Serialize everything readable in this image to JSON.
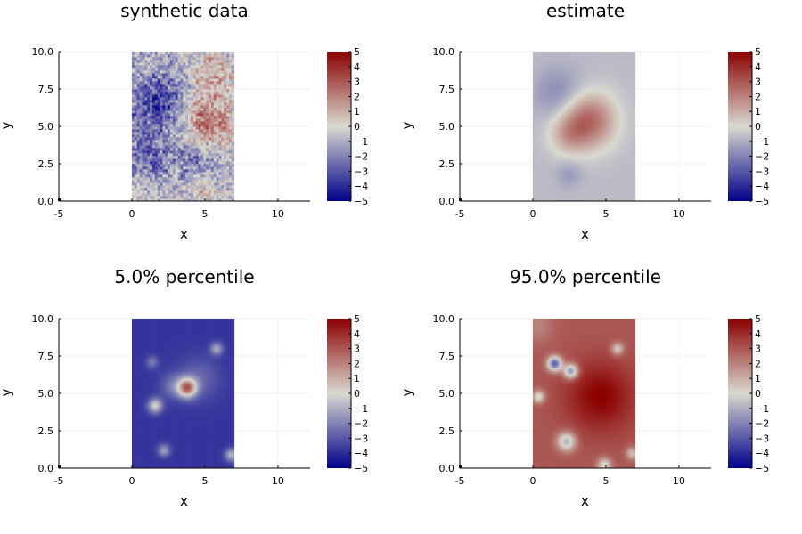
{
  "colors": {
    "colormap": [
      "#00008b",
      "#d9d9d0",
      "#8b0000"
    ],
    "axis": "#000000",
    "grid": "#e6e6e6"
  },
  "chart_data": [
    {
      "type": "heatmap",
      "title": "synthetic data",
      "xlabel": "x",
      "ylabel": "y",
      "xlim": [
        -5,
        12.2
      ],
      "ylim": [
        0,
        10
      ],
      "xticks": [
        "-5",
        "0",
        "5",
        "10"
      ],
      "yticks": [
        "0.0",
        "2.5",
        "5.0",
        "7.5",
        "10.0"
      ],
      "data_extent": {
        "x": [
          0,
          7
        ],
        "y": [
          0,
          10
        ]
      },
      "field": {
        "kind": "noisy",
        "base": -0.6,
        "bumps": [
          {
            "x": 1.8,
            "y": 6.5,
            "amp": -3.0,
            "sigma": 1.4
          },
          {
            "x": 1.0,
            "y": 2.8,
            "amp": -2.0,
            "sigma": 1.2
          },
          {
            "x": 4.5,
            "y": 2.5,
            "amp": -1.6,
            "sigma": 1.0
          },
          {
            "x": 5.2,
            "y": 5.4,
            "amp": 3.2,
            "sigma": 1.2
          },
          {
            "x": 5.5,
            "y": 8.5,
            "amp": 1.8,
            "sigma": 1.0
          },
          {
            "x": 4.8,
            "y": 1.0,
            "amp": 1.2,
            "sigma": 0.8
          },
          {
            "x": 0.5,
            "y": 0.6,
            "amp": 0.8,
            "sigma": 0.8
          }
        ]
      },
      "colorbar": {
        "ticks": [
          "5",
          "4",
          "3",
          "2",
          "1",
          "0",
          "−1",
          "−2",
          "−3",
          "−4",
          "−5"
        ],
        "range": [
          -5,
          5
        ]
      }
    },
    {
      "type": "heatmap",
      "title": "estimate",
      "xlabel": "x",
      "ylabel": "y",
      "xlim": [
        -5,
        12.2
      ],
      "ylim": [
        0,
        10
      ],
      "xticks": [
        "-5",
        "0",
        "5",
        "10"
      ],
      "yticks": [
        "0.0",
        "2.5",
        "5.0",
        "7.5",
        "10.0"
      ],
      "data_extent": {
        "x": [
          0,
          7
        ],
        "y": [
          0,
          10
        ]
      },
      "field": {
        "kind": "smooth",
        "base": -0.7,
        "bumps": [
          {
            "x": 3.8,
            "y": 5.4,
            "amp": 3.4,
            "sigma": 1.3
          },
          {
            "x": 2.4,
            "y": 4.4,
            "amp": 1.4,
            "sigma": 0.9
          },
          {
            "x": 1.8,
            "y": 7.2,
            "amp": -1.2,
            "sigma": 1.2
          },
          {
            "x": 2.5,
            "y": 1.8,
            "amp": -0.8,
            "sigma": 0.6
          }
        ]
      },
      "colorbar": {
        "ticks": [
          "5",
          "4",
          "3",
          "2",
          "1",
          "0",
          "−1",
          "−2",
          "−3",
          "−4",
          "−5"
        ],
        "range": [
          -5,
          5
        ]
      }
    },
    {
      "type": "heatmap",
      "title": "5.0% percentile",
      "xlabel": "x",
      "ylabel": "y",
      "xlim": [
        -5,
        12.2
      ],
      "ylim": [
        0,
        10
      ],
      "xticks": [
        "-5",
        "0",
        "5",
        "10"
      ],
      "yticks": [
        "0.0",
        "2.5",
        "5.0",
        "7.5",
        "10.0"
      ],
      "data_extent": {
        "x": [
          0,
          7
        ],
        "y": [
          0,
          10
        ]
      },
      "field": {
        "kind": "smooth",
        "base": -3.8,
        "bumps": [
          {
            "x": 3.8,
            "y": 5.4,
            "amp": 6.0,
            "sigma": 0.45
          },
          {
            "x": 1.6,
            "y": 4.2,
            "amp": 3.6,
            "sigma": 0.35
          },
          {
            "x": 5.8,
            "y": 8.0,
            "amp": 2.6,
            "sigma": 0.3
          },
          {
            "x": 1.4,
            "y": 7.1,
            "amp": 1.6,
            "sigma": 0.3
          },
          {
            "x": 2.2,
            "y": 1.2,
            "amp": 2.4,
            "sigma": 0.3
          },
          {
            "x": 6.8,
            "y": 0.9,
            "amp": 3.0,
            "sigma": 0.3
          },
          {
            "x": 2.8,
            "y": 5.5,
            "amp": 1.4,
            "sigma": 0.6
          },
          {
            "x": 4.6,
            "y": 6.0,
            "amp": 1.2,
            "sigma": 1.0
          }
        ]
      },
      "colorbar": {
        "ticks": [
          "5",
          "4",
          "3",
          "2",
          "1",
          "0",
          "−1",
          "−2",
          "−3",
          "−4",
          "−5"
        ],
        "range": [
          -5,
          5
        ]
      }
    },
    {
      "type": "heatmap",
      "title": "95.0% percentile",
      "xlabel": "x",
      "ylabel": "y",
      "xlim": [
        -5,
        12.2
      ],
      "ylim": [
        0,
        10
      ],
      "xticks": [
        "-5",
        "0",
        "5",
        "10"
      ],
      "yticks": [
        "0.0",
        "2.5",
        "5.0",
        "7.5",
        "10.0"
      ],
      "data_extent": {
        "x": [
          0,
          7
        ],
        "y": [
          0,
          10
        ]
      },
      "field": {
        "kind": "smooth",
        "base": 3.0,
        "bumps": [
          {
            "x": 4.6,
            "y": 4.8,
            "amp": 2.0,
            "sigma": 1.6
          },
          {
            "x": 1.5,
            "y": 7.0,
            "amp": -6.0,
            "sigma": 0.35
          },
          {
            "x": 2.6,
            "y": 6.5,
            "amp": -5.0,
            "sigma": 0.35
          },
          {
            "x": 0.4,
            "y": 4.8,
            "amp": -3.2,
            "sigma": 0.3
          },
          {
            "x": 2.3,
            "y": 1.8,
            "amp": -4.0,
            "sigma": 0.45
          },
          {
            "x": 4.9,
            "y": 0.2,
            "amp": -3.2,
            "sigma": 0.35
          },
          {
            "x": 5.8,
            "y": 8.0,
            "amp": -2.8,
            "sigma": 0.3
          },
          {
            "x": 6.8,
            "y": 1.0,
            "amp": -2.4,
            "sigma": 0.3
          },
          {
            "x": 0.3,
            "y": 9.5,
            "amp": -1.0,
            "sigma": 0.8
          }
        ]
      },
      "colorbar": {
        "ticks": [
          "5",
          "4",
          "3",
          "2",
          "1",
          "0",
          "−1",
          "−2",
          "−3",
          "−4",
          "−5"
        ],
        "range": [
          -5,
          5
        ]
      }
    }
  ]
}
